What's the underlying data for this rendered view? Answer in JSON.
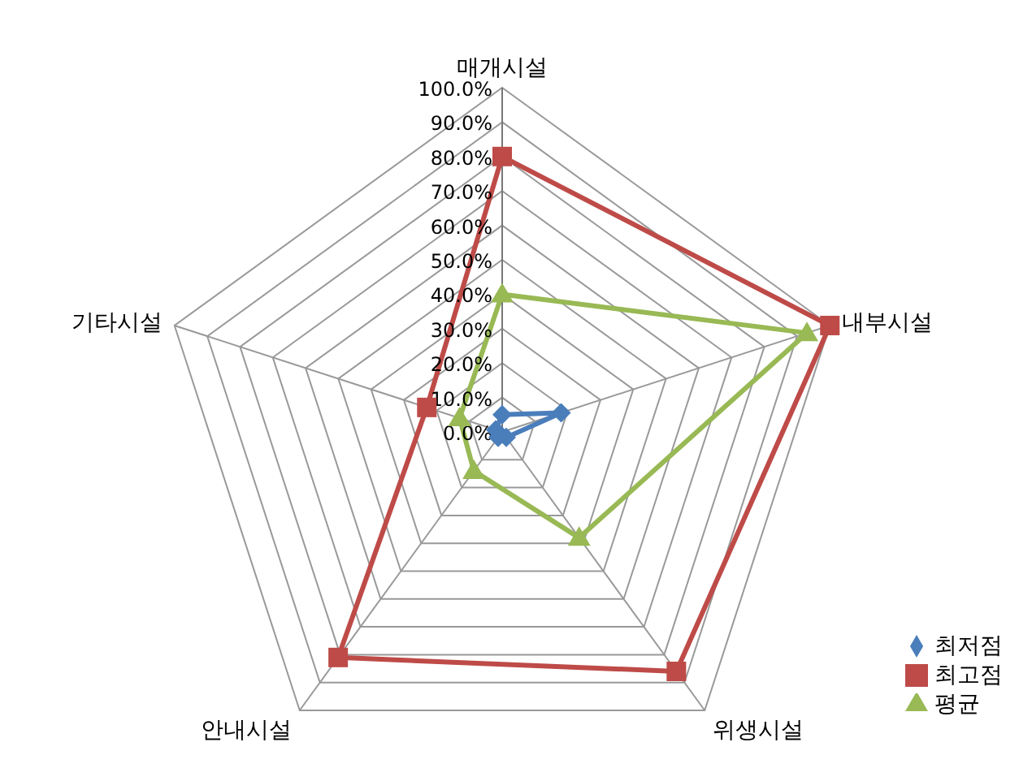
{
  "chart_data": {
    "type": "radar",
    "categories": [
      "매개시설",
      "내부시설",
      "위생시설",
      "안내시설",
      "기타시설"
    ],
    "series": [
      {
        "name": "최저점",
        "color": "#4a7ebb",
        "values": [
          5,
          18,
          2,
          2,
          2
        ],
        "marker": "diamond"
      },
      {
        "name": "최고점",
        "color": "#be4b48",
        "values": [
          80,
          100,
          86,
          81,
          23
        ],
        "marker": "square"
      },
      {
        "name": "평균",
        "color": "#98b954",
        "values": [
          40,
          93,
          38,
          14,
          13
        ],
        "marker": "triangle"
      }
    ],
    "ylim": [
      0,
      100
    ],
    "yticks": [
      {
        "value": 0,
        "label": "0.0%"
      },
      {
        "value": 10,
        "label": "10.0%"
      },
      {
        "value": 20,
        "label": "20.0%"
      },
      {
        "value": 30,
        "label": "30.0%"
      },
      {
        "value": 40,
        "label": "40.0%"
      },
      {
        "value": 50,
        "label": "50.0%"
      },
      {
        "value": 60,
        "label": "60.0%"
      },
      {
        "value": 70,
        "label": "70.0%"
      },
      {
        "value": 80,
        "label": "80.0%"
      },
      {
        "value": 90,
        "label": "90.0%"
      },
      {
        "value": 100,
        "label": "100.0%"
      }
    ],
    "grid": true,
    "legend": "bottom right"
  }
}
